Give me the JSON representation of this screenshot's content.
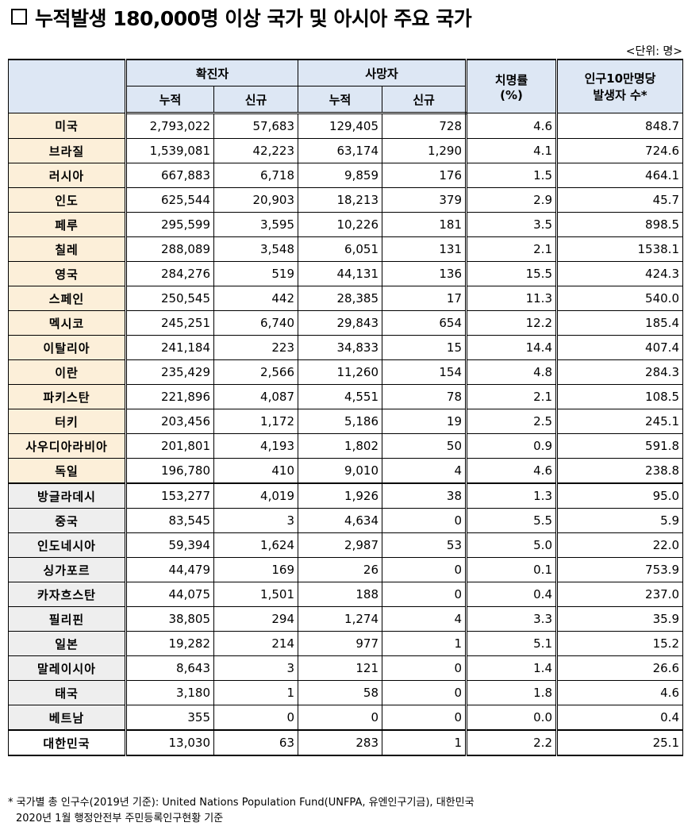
{
  "title": "누적발생 180,000명 이상 국가 및 아시아 주요 국가",
  "unit": "<단위: 명>",
  "headers": {
    "confirmed": "확진자",
    "deaths": "사망자",
    "cumulative": "누적",
    "new": "신규",
    "fatality_line1": "치명률",
    "fatality_line2": "(%)",
    "per100k_line1": "인구10만명당",
    "per100k_line2": "발생자 수*"
  },
  "rows": [
    {
      "country": "미국",
      "conf_cum": "2,793,022",
      "conf_new": "57,683",
      "death_cum": "129,405",
      "death_new": "728",
      "rate": "4.6",
      "per100k": "848.7"
    },
    {
      "country": "브라질",
      "conf_cum": "1,539,081",
      "conf_new": "42,223",
      "death_cum": "63,174",
      "death_new": "1,290",
      "rate": "4.1",
      "per100k": "724.6"
    },
    {
      "country": "러시아",
      "conf_cum": "667,883",
      "conf_new": "6,718",
      "death_cum": "9,859",
      "death_new": "176",
      "rate": "1.5",
      "per100k": "464.1"
    },
    {
      "country": "인도",
      "conf_cum": "625,544",
      "conf_new": "20,903",
      "death_cum": "18,213",
      "death_new": "379",
      "rate": "2.9",
      "per100k": "45.7"
    },
    {
      "country": "페루",
      "conf_cum": "295,599",
      "conf_new": "3,595",
      "death_cum": "10,226",
      "death_new": "181",
      "rate": "3.5",
      "per100k": "898.5"
    },
    {
      "country": "칠레",
      "conf_cum": "288,089",
      "conf_new": "3,548",
      "death_cum": "6,051",
      "death_new": "131",
      "rate": "2.1",
      "per100k": "1538.1"
    },
    {
      "country": "영국",
      "conf_cum": "284,276",
      "conf_new": "519",
      "death_cum": "44,131",
      "death_new": "136",
      "rate": "15.5",
      "per100k": "424.3"
    },
    {
      "country": "스페인",
      "conf_cum": "250,545",
      "conf_new": "442",
      "death_cum": "28,385",
      "death_new": "17",
      "rate": "11.3",
      "per100k": "540.0"
    },
    {
      "country": "멕시코",
      "conf_cum": "245,251",
      "conf_new": "6,740",
      "death_cum": "29,843",
      "death_new": "654",
      "rate": "12.2",
      "per100k": "185.4"
    },
    {
      "country": "이탈리아",
      "conf_cum": "241,184",
      "conf_new": "223",
      "death_cum": "34,833",
      "death_new": "15",
      "rate": "14.4",
      "per100k": "407.4"
    },
    {
      "country": "이란",
      "conf_cum": "235,429",
      "conf_new": "2,566",
      "death_cum": "11,260",
      "death_new": "154",
      "rate": "4.8",
      "per100k": "284.3"
    },
    {
      "country": "파키스탄",
      "conf_cum": "221,896",
      "conf_new": "4,087",
      "death_cum": "4,551",
      "death_new": "78",
      "rate": "2.1",
      "per100k": "108.5"
    },
    {
      "country": "터키",
      "conf_cum": "203,456",
      "conf_new": "1,172",
      "death_cum": "5,186",
      "death_new": "19",
      "rate": "2.5",
      "per100k": "245.1"
    },
    {
      "country": "사우디아라비아",
      "conf_cum": "201,801",
      "conf_new": "4,193",
      "death_cum": "1,802",
      "death_new": "50",
      "rate": "0.9",
      "per100k": "591.8"
    },
    {
      "country": "독일",
      "conf_cum": "196,780",
      "conf_new": "410",
      "death_cum": "9,010",
      "death_new": "4",
      "rate": "4.6",
      "per100k": "238.8"
    },
    {
      "country": "방글라데시",
      "conf_cum": "153,277",
      "conf_new": "4,019",
      "death_cum": "1,926",
      "death_new": "38",
      "rate": "1.3",
      "per100k": "95.0"
    },
    {
      "country": "중국",
      "conf_cum": "83,545",
      "conf_new": "3",
      "death_cum": "4,634",
      "death_new": "0",
      "rate": "5.5",
      "per100k": "5.9"
    },
    {
      "country": "인도네시아",
      "conf_cum": "59,394",
      "conf_new": "1,624",
      "death_cum": "2,987",
      "death_new": "53",
      "rate": "5.0",
      "per100k": "22.0"
    },
    {
      "country": "싱가포르",
      "conf_cum": "44,479",
      "conf_new": "169",
      "death_cum": "26",
      "death_new": "0",
      "rate": "0.1",
      "per100k": "753.9"
    },
    {
      "country": "카자흐스탄",
      "conf_cum": "44,075",
      "conf_new": "1,501",
      "death_cum": "188",
      "death_new": "0",
      "rate": "0.4",
      "per100k": "237.0"
    },
    {
      "country": "필리핀",
      "conf_cum": "38,805",
      "conf_new": "294",
      "death_cum": "1,274",
      "death_new": "4",
      "rate": "3.3",
      "per100k": "35.9"
    },
    {
      "country": "일본",
      "conf_cum": "19,282",
      "conf_new": "214",
      "death_cum": "977",
      "death_new": "1",
      "rate": "5.1",
      "per100k": "15.2"
    },
    {
      "country": "말레이시아",
      "conf_cum": "8,643",
      "conf_new": "3",
      "death_cum": "121",
      "death_new": "0",
      "rate": "1.4",
      "per100k": "26.6"
    },
    {
      "country": "태국",
      "conf_cum": "3,180",
      "conf_new": "1",
      "death_cum": "58",
      "death_new": "0",
      "rate": "1.8",
      "per100k": "4.6"
    },
    {
      "country": "베트남",
      "conf_cum": "355",
      "conf_new": "0",
      "death_cum": "0",
      "death_new": "0",
      "rate": "0.0",
      "per100k": "0.4"
    },
    {
      "country": "대한민국",
      "conf_cum": "13,030",
      "conf_new": "63",
      "death_cum": "283",
      "death_new": "1",
      "rate": "2.2",
      "per100k": "25.1"
    }
  ],
  "footnote": {
    "line1": "* 국가별 총 인구수(2019년 기준): United Nations Population Fund(UNFPA, 유엔인구기금), 대한민국",
    "line2": "2020년 1월 행정안전부 주민등록인구현황 기준"
  }
}
